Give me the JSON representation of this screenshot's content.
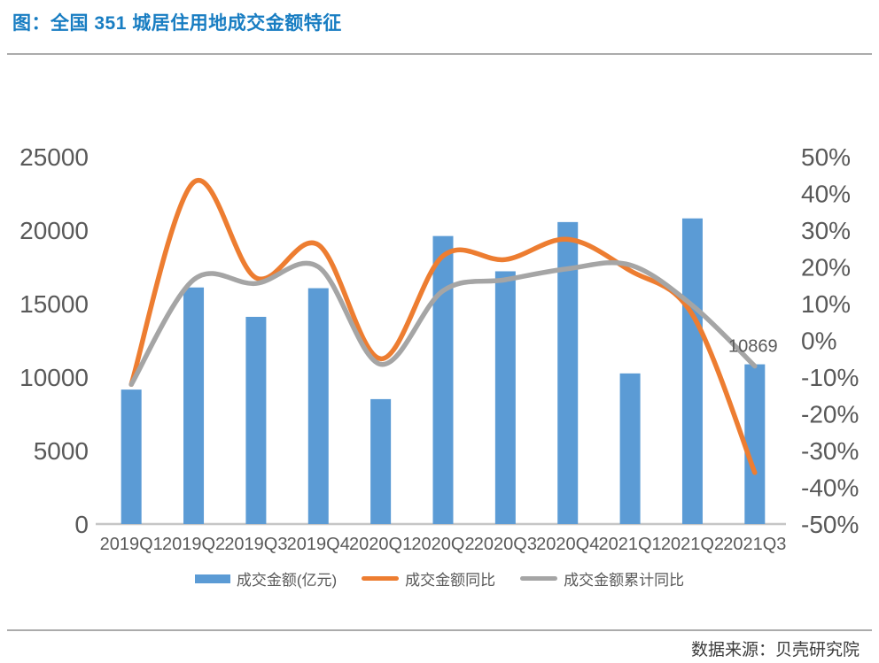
{
  "title": "图：全国 351 城居住用地成交金额特征",
  "source": "数据来源：贝壳研究院",
  "chart_data": {
    "type": "combo-bar-line",
    "categories": [
      "2019Q1",
      "2019Q2",
      "2019Q3",
      "2019Q4",
      "2020Q1",
      "2020Q2",
      "2020Q3",
      "2020Q4",
      "2021Q1",
      "2021Q2",
      "2021Q3"
    ],
    "series": [
      {
        "name": "成交金额(亿元)",
        "type": "bar",
        "axis": "left",
        "color": "#5B9BD5",
        "values": [
          9150,
          16100,
          14100,
          16050,
          8500,
          19600,
          17200,
          20550,
          10250,
          20800,
          10869
        ]
      },
      {
        "name": "成交金额同比",
        "type": "line",
        "axis": "right",
        "color": "#ED7D31",
        "values": [
          -12,
          43,
          17,
          26,
          -5,
          23,
          22,
          27.5,
          19,
          7,
          -36
        ]
      },
      {
        "name": "成交金额累计同比",
        "type": "line",
        "axis": "right",
        "color": "#A5A5A5",
        "values": [
          -12,
          16.5,
          15.5,
          20,
          -6.5,
          13.5,
          16.5,
          19.5,
          20.5,
          9.5,
          -7
        ]
      }
    ],
    "left_axis": {
      "min": 0,
      "max": 25000,
      "step": 5000,
      "tick_labels": [
        "25000",
        "20000",
        "15000",
        "10000",
        "5000",
        "0"
      ]
    },
    "right_axis": {
      "min": -50,
      "max": 50,
      "step": 10,
      "tick_labels": [
        "50%",
        "40%",
        "30%",
        "20%",
        "10%",
        "0%",
        "-10%",
        "-20%",
        "-30%",
        "-40%",
        "-50%"
      ]
    },
    "annotations": [
      {
        "series": "成交金额(亿元)",
        "category": "2021Q3",
        "text": "10869"
      }
    ],
    "legend_position": "bottom",
    "grid": false
  },
  "colors": {
    "title": "#187DC2",
    "axis_text": "#595959",
    "axis_line": "#C6C6C6",
    "divider": "#ABABAB",
    "source_text": "#3B3B3B",
    "annotation_text": "#595959"
  }
}
